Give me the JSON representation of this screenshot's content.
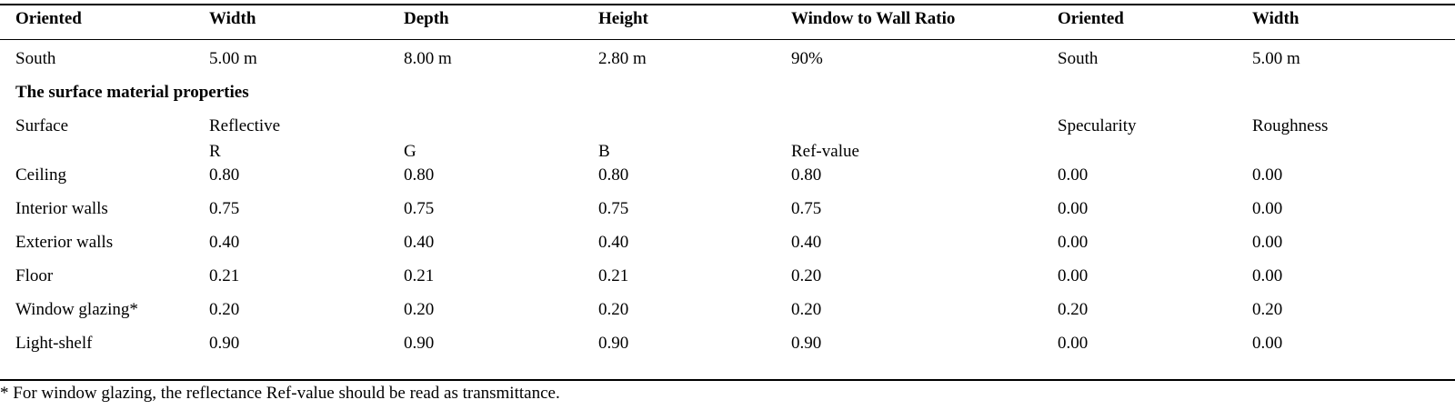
{
  "header": {
    "columns": [
      "Oriented",
      "Width",
      "Depth",
      "Height",
      "Window to Wall Ratio",
      "Oriented",
      "Width"
    ]
  },
  "dimensions_row": [
    "South",
    "5.00 m",
    "8.00 m",
    "2.80 m",
    "90%",
    "South",
    "5.00 m"
  ],
  "materials": {
    "title": "The surface material properties",
    "header1": {
      "surface": "Surface",
      "reflective": "Reflective",
      "specularity": "Specularity",
      "roughness": "Roughness"
    },
    "header2": {
      "r": "R",
      "g": "G",
      "b": "B",
      "ref": "Ref-value"
    },
    "rows": [
      [
        "Ceiling",
        "0.80",
        "0.80",
        "0.80",
        "0.80",
        "0.00",
        "0.00"
      ],
      [
        "Interior walls",
        "0.75",
        "0.75",
        "0.75",
        "0.75",
        "0.00",
        "0.00"
      ],
      [
        "Exterior walls",
        "0.40",
        "0.40",
        "0.40",
        "0.40",
        "0.00",
        "0.00"
      ],
      [
        "Floor",
        "0.21",
        "0.21",
        "0.21",
        "0.20",
        "0.00",
        "0.00"
      ],
      [
        "Window glazing*",
        "0.20",
        "0.20",
        "0.20",
        "0.20",
        "0.20",
        "0.20"
      ],
      [
        "Light-shelf",
        "0.90",
        "0.90",
        "0.90",
        "0.90",
        "0.00",
        "0.00"
      ]
    ]
  },
  "footnote": "* For window glazing, the reflectance Ref-value should be read as transmittance."
}
